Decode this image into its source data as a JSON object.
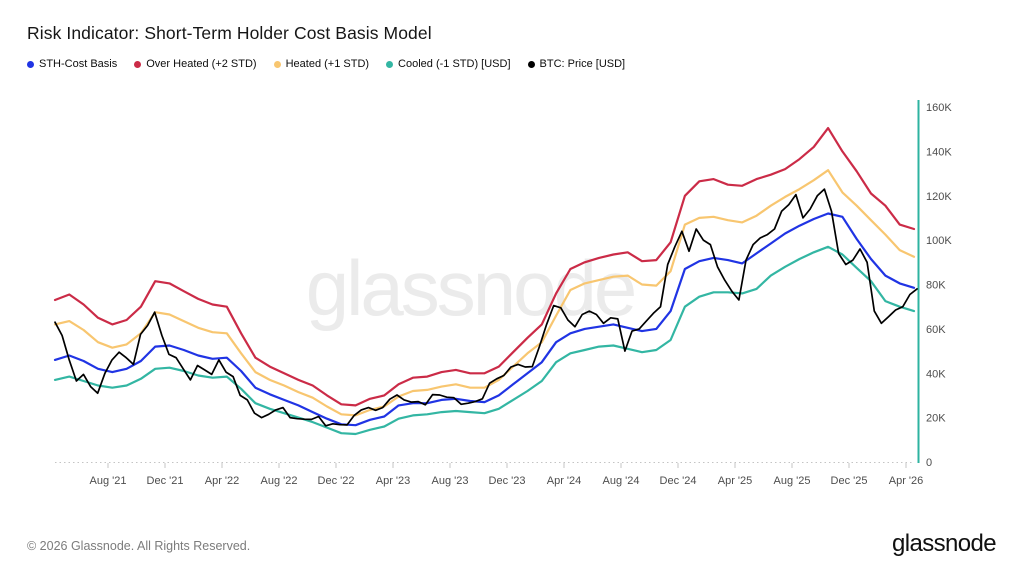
{
  "title": "Risk Indicator: Short-Term Holder Cost Basis Model",
  "legend": [
    {
      "label": "STH-Cost Basis",
      "color": "#2034e4"
    },
    {
      "label": "Over Heated (+2 STD)",
      "color": "#cb2b47"
    },
    {
      "label": "Heated (+1 STD)",
      "color": "#f8c670"
    },
    {
      "label": "Cooled (-1 STD) [USD]",
      "color": "#33b6a3"
    },
    {
      "label": "BTC: Price [USD]",
      "color": "#000000"
    }
  ],
  "watermark": "glassnode",
  "footer": {
    "copyright": "© 2026 Glassnode. All Rights Reserved.",
    "logo": "glassnode"
  },
  "chart_data": {
    "type": "line",
    "title": "Risk Indicator: Short-Term Holder Cost Basis Model",
    "x_range": [
      "Apr 2021",
      "Apr 2026"
    ],
    "x_tick_labels": [
      "Aug '21",
      "Dec '21",
      "Apr '22",
      "Aug '22",
      "Dec '22",
      "Apr '23",
      "Aug '23",
      "Dec '23",
      "Apr '24",
      "Aug '24",
      "Dec '24",
      "Apr '25",
      "Aug '25",
      "Dec '25",
      "Apr '26"
    ],
    "y_tick_labels": [
      "0",
      "20K",
      "40K",
      "60K",
      "80K",
      "100K",
      "120K",
      "140K",
      "160K"
    ],
    "ylim_usd": [
      0,
      160000
    ],
    "grid": false,
    "legend_position": "top-left",
    "axis_color": "#2eb3a0",
    "baseline_color": "#c4c4c4",
    "series": [
      {
        "id": "over-heated-plus2std",
        "name": "Over Heated (+2 STD)",
        "color": "#cb2b47",
        "sampling": "monthly",
        "unit": "K USD",
        "values_k": [
          73,
          75.5,
          71,
          65,
          62,
          64,
          70,
          81.5,
          80.5,
          77,
          73.5,
          71,
          70,
          58,
          47,
          43,
          40,
          37,
          34.5,
          30,
          26,
          25.5,
          28.5,
          30,
          35,
          38,
          38.5,
          40.5,
          41.5,
          40,
          40,
          43,
          49.5,
          56,
          62,
          76,
          87,
          90,
          92,
          93.5,
          94.5,
          90.5,
          91,
          99,
          120,
          126.5,
          127.5,
          125,
          124.5,
          127.5,
          129.5,
          132,
          136.5,
          142,
          150.5,
          140,
          131,
          121,
          115.5,
          107,
          105
        ]
      },
      {
        "id": "heated-plus1std",
        "name": "Heated (+1 STD)",
        "color": "#f8c670",
        "sampling": "monthly",
        "unit": "K USD",
        "values_k": [
          62,
          63.5,
          59.5,
          54,
          51.5,
          53,
          58,
          67.5,
          66.5,
          63.5,
          60.5,
          58.5,
          58,
          49,
          40.5,
          37,
          34.5,
          31.5,
          29,
          25,
          21.5,
          21,
          23.5,
          25,
          29.5,
          32,
          32.5,
          34,
          35,
          33.5,
          33.5,
          37,
          43,
          49,
          54,
          66,
          77.5,
          80.5,
          82,
          83.5,
          84,
          80,
          79.5,
          86,
          107,
          110,
          110.5,
          109,
          108,
          111,
          115.5,
          119.5,
          123,
          127,
          131.5,
          121.5,
          115.5,
          109,
          102.5,
          95.5,
          92.5
        ]
      },
      {
        "id": "cooled-minus1std",
        "name": "Cooled (-1 STD)",
        "color": "#33b6a3",
        "sampling": "monthly",
        "unit": "K USD",
        "values_k": [
          37,
          38.5,
          36.5,
          34.5,
          33.5,
          34.5,
          37.5,
          42,
          42.5,
          41,
          39,
          38,
          38.5,
          33,
          26.5,
          24,
          22,
          20,
          18,
          15.5,
          13,
          12.6,
          14.5,
          16,
          19.5,
          21,
          21.5,
          22.5,
          23,
          22.5,
          22,
          24,
          28,
          32,
          36.5,
          45,
          49,
          50.5,
          52,
          52.5,
          51,
          49.5,
          50.5,
          55,
          70,
          74.5,
          76.5,
          76.5,
          76,
          78,
          84,
          88,
          91.5,
          94.5,
          97,
          93.5,
          87.5,
          81.5,
          72.5,
          70,
          68
        ]
      },
      {
        "id": "sth-cost-basis",
        "name": "STH-Cost Basis",
        "color": "#2034e4",
        "sampling": "monthly",
        "unit": "K USD",
        "values_k": [
          46,
          48,
          45.5,
          42,
          40.5,
          42,
          45.5,
          52,
          52.5,
          50.5,
          48,
          46.5,
          47,
          41,
          33.5,
          30.5,
          28,
          25.5,
          22.5,
          19.5,
          17,
          16.6,
          19,
          20.5,
          25.5,
          26.5,
          26.5,
          28,
          28.5,
          27.5,
          27,
          30,
          35,
          40,
          45,
          54,
          58,
          60,
          61,
          62,
          60.5,
          59,
          60,
          68,
          87,
          90.5,
          92,
          91,
          89.5,
          94,
          98.5,
          103,
          106.5,
          109.5,
          112,
          110.5,
          100.5,
          91.5,
          84,
          80.5,
          78.5
        ]
      },
      {
        "id": "btc-price",
        "name": "BTC: Price",
        "color": "#000000",
        "sampling": "semi-monthly",
        "unit": "K USD",
        "values_k": [
          63,
          57,
          46,
          36.5,
          39.5,
          34,
          31,
          40,
          46,
          49.5,
          47,
          44,
          57.5,
          61.5,
          67.5,
          57,
          48.5,
          47,
          42,
          37,
          43.5,
          41.5,
          39.5,
          46,
          40.5,
          38.5,
          30,
          28,
          22,
          20,
          21.5,
          23.5,
          24.5,
          20,
          19.5,
          19.3,
          19.2,
          20.5,
          16.3,
          17.2,
          16.8,
          16.7,
          21,
          23.5,
          24.5,
          23.3,
          24.5,
          28.3,
          30.2,
          28,
          27,
          27.2,
          25.8,
          30.4,
          30.2,
          29.2,
          29,
          26,
          26.5,
          27.2,
          28.5,
          35.5,
          37.5,
          39,
          42.8,
          44,
          42.8,
          43,
          52,
          62,
          70.5,
          69.5,
          64,
          61,
          66.5,
          68,
          66.5,
          62.5,
          65,
          64.5,
          50,
          59,
          60,
          63.5,
          67,
          70,
          89,
          97,
          104,
          95,
          105,
          100,
          98,
          88,
          82,
          77,
          73,
          91,
          98,
          101,
          102.5,
          105,
          113,
          116,
          120.5,
          110,
          114,
          120,
          123,
          113,
          94,
          89,
          91,
          96,
          90,
          68,
          62.5,
          65.5,
          68.5,
          70,
          75.5,
          78
        ]
      }
    ]
  }
}
